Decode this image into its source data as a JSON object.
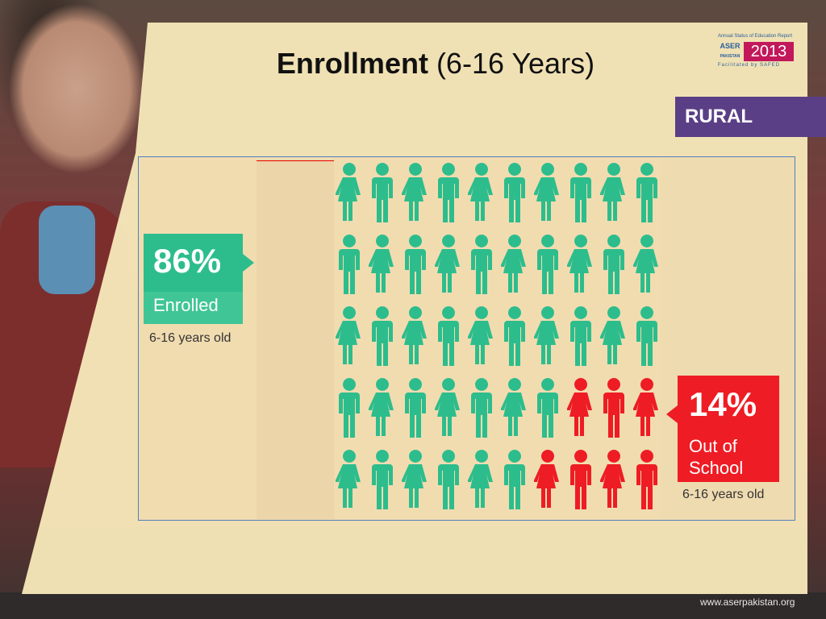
{
  "slide": {
    "title_bold": "Enrollment",
    "title_rest": " (6-16 Years)",
    "region_badge": "RURAL",
    "website": "www.aserpakistan.org"
  },
  "logo": {
    "tagline": "Annual Status of Education Report",
    "brand": "ASER",
    "country": "PAKISTAN",
    "year": "2013",
    "facilitated": "Facilitated by SAFED"
  },
  "enrolled": {
    "percent": "86%",
    "label": "Enrolled",
    "age_note": "6-16 years old",
    "color": "#2dbd8d"
  },
  "out_of_school": {
    "percent": "14%",
    "label": "Out of School",
    "age_note": "6-16 years old",
    "color": "#ee1c24"
  },
  "pictogram": {
    "rows": 5,
    "per_row": 10,
    "enrolled_color": "#2dbd8d",
    "out_color": "#ee1c24",
    "grid": [
      [
        "girl",
        "boy",
        "girl",
        "boy",
        "girl",
        "boy",
        "girl",
        "boy",
        "girl",
        "boy"
      ],
      [
        "boy",
        "girl",
        "boy",
        "girl",
        "boy",
        "girl",
        "boy",
        "girl",
        "boy",
        "girl"
      ],
      [
        "girl",
        "boy",
        "girl",
        "boy",
        "girl",
        "boy",
        "girl",
        "boy",
        "girl",
        "boy"
      ],
      [
        "boy",
        "girl",
        "boy",
        "girl",
        "boy",
        "girl",
        "boy",
        "girl-out",
        "boy-out",
        "girl-out"
      ],
      [
        "girl",
        "boy",
        "girl",
        "boy",
        "girl",
        "boy",
        "girl-out",
        "boy-out",
        "girl-out",
        "boy-out"
      ]
    ]
  }
}
